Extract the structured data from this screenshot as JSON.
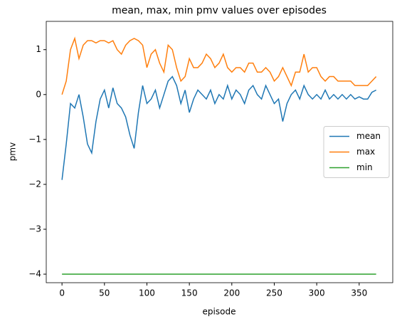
{
  "chart_data": {
    "type": "line",
    "title": "mean, max, min pmv values over episodes",
    "xlabel": "episode",
    "ylabel": "pmv",
    "x": [
      0,
      5,
      10,
      15,
      20,
      25,
      30,
      35,
      40,
      45,
      50,
      55,
      60,
      65,
      70,
      75,
      80,
      85,
      90,
      95,
      100,
      105,
      110,
      115,
      120,
      125,
      130,
      135,
      140,
      145,
      150,
      155,
      160,
      165,
      170,
      175,
      180,
      185,
      190,
      195,
      200,
      205,
      210,
      215,
      220,
      225,
      230,
      235,
      240,
      245,
      250,
      255,
      260,
      265,
      270,
      275,
      280,
      285,
      290,
      295,
      300,
      305,
      310,
      315,
      320,
      325,
      330,
      335,
      340,
      345,
      350,
      355,
      360,
      365,
      370
    ],
    "series": [
      {
        "name": "mean",
        "color": "#1f77b4",
        "values": [
          -1.9,
          -1.1,
          -0.2,
          -0.3,
          0.0,
          -0.5,
          -1.1,
          -1.3,
          -0.6,
          -0.1,
          0.1,
          -0.3,
          0.15,
          -0.2,
          -0.3,
          -0.5,
          -0.9,
          -1.2,
          -0.4,
          0.2,
          -0.2,
          -0.1,
          0.1,
          -0.3,
          0.0,
          0.3,
          0.4,
          0.2,
          -0.2,
          0.1,
          -0.4,
          -0.1,
          0.1,
          0.0,
          -0.1,
          0.1,
          -0.2,
          0.0,
          -0.1,
          0.2,
          -0.1,
          0.1,
          0.0,
          -0.2,
          0.1,
          0.2,
          0.0,
          -0.1,
          0.2,
          0.0,
          -0.2,
          -0.1,
          -0.6,
          -0.2,
          0.0,
          0.1,
          -0.1,
          0.2,
          0.0,
          -0.1,
          0.0,
          -0.1,
          0.1,
          -0.1,
          0.0,
          -0.1,
          0.0,
          -0.1,
          0.0,
          -0.1,
          -0.05,
          -0.1,
          -0.1,
          0.05,
          0.1
        ]
      },
      {
        "name": "max",
        "color": "#ff7f0e",
        "values": [
          0.0,
          0.3,
          1.0,
          1.25,
          0.8,
          1.1,
          1.2,
          1.2,
          1.15,
          1.2,
          1.2,
          1.15,
          1.2,
          1.0,
          0.9,
          1.1,
          1.2,
          1.25,
          1.2,
          1.1,
          0.6,
          0.9,
          1.0,
          0.7,
          0.5,
          1.1,
          1.0,
          0.6,
          0.3,
          0.4,
          0.8,
          0.6,
          0.6,
          0.7,
          0.9,
          0.8,
          0.6,
          0.7,
          0.9,
          0.6,
          0.5,
          0.6,
          0.6,
          0.5,
          0.7,
          0.7,
          0.5,
          0.5,
          0.6,
          0.5,
          0.3,
          0.4,
          0.6,
          0.4,
          0.2,
          0.5,
          0.5,
          0.9,
          0.5,
          0.6,
          0.6,
          0.4,
          0.3,
          0.4,
          0.4,
          0.3,
          0.3,
          0.3,
          0.3,
          0.2,
          0.2,
          0.2,
          0.2,
          0.3,
          0.4
        ]
      },
      {
        "name": "min",
        "color": "#2ca02c",
        "values": [
          -4,
          -4,
          -4,
          -4,
          -4,
          -4,
          -4,
          -4,
          -4,
          -4,
          -4,
          -4,
          -4,
          -4,
          -4,
          -4,
          -4,
          -4,
          -4,
          -4,
          -4,
          -4,
          -4,
          -4,
          -4,
          -4,
          -4,
          -4,
          -4,
          -4,
          -4,
          -4,
          -4,
          -4,
          -4,
          -4,
          -4,
          -4,
          -4,
          -4,
          -4,
          -4,
          -4,
          -4,
          -4,
          -4,
          -4,
          -4,
          -4,
          -4,
          -4,
          -4,
          -4,
          -4,
          -4,
          -4,
          -4,
          -4,
          -4,
          -4,
          -4,
          -4,
          -4,
          -4,
          -4,
          -4,
          -4,
          -4,
          -4,
          -4,
          -4,
          -4,
          -4,
          -4,
          -4
        ]
      }
    ],
    "xlim": [
      -18.55,
      389.55
    ],
    "xticks": [
      0,
      50,
      100,
      150,
      200,
      250,
      300,
      350
    ],
    "ylim": [
      -4.19,
      1.63
    ],
    "yticks": [
      {
        "value": -4,
        "label": "−4"
      },
      {
        "value": -3,
        "label": "−3"
      },
      {
        "value": -2,
        "label": "−2"
      },
      {
        "value": -1,
        "label": "−1"
      },
      0,
      1
    ],
    "legend": "center right",
    "grid": false
  }
}
